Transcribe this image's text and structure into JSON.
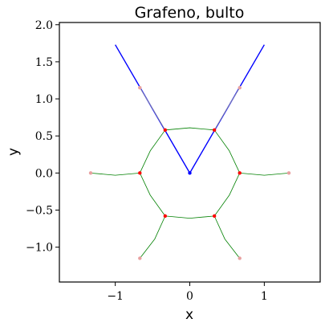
{
  "chart_data": {
    "type": "line",
    "title": "Grafeno, bulto",
    "xlabel": "x",
    "ylabel": "y",
    "xlim": [
      -1.75,
      1.75
    ],
    "ylim": [
      -1.47,
      2.03
    ],
    "xticks": [
      {
        "value": -1,
        "label": "−1"
      },
      {
        "value": 0,
        "label": "0"
      },
      {
        "value": 1,
        "label": "1"
      }
    ],
    "yticks": [
      {
        "value": -1.0,
        "label": "−1.0"
      },
      {
        "value": -0.5,
        "label": "−0.5"
      },
      {
        "value": 0.0,
        "label": "0.0"
      },
      {
        "value": 0.5,
        "label": "0.5"
      },
      {
        "value": 1.0,
        "label": "1.0"
      },
      {
        "value": 1.5,
        "label": "1.5"
      },
      {
        "value": 2.0,
        "label": "2.0"
      }
    ],
    "grid": false,
    "colors": {
      "blue": "#0000ff",
      "green": "#008000",
      "red": "#ff0000",
      "gray": "#999999",
      "pink": "#e8a0a0"
    },
    "series": [
      {
        "color": "blue",
        "width": 1.4,
        "points": [
          [
            -1.0,
            1.73
          ],
          [
            0.0,
            0.0
          ],
          [
            1.0,
            1.73
          ]
        ]
      },
      {
        "color": "gray",
        "width": 0.8,
        "points": [
          [
            -0.67,
            1.15
          ],
          [
            -0.5,
            0.87
          ],
          [
            -0.33,
            0.58
          ]
        ]
      },
      {
        "color": "gray",
        "width": 0.8,
        "points": [
          [
            0.67,
            1.15
          ],
          [
            0.5,
            0.87
          ],
          [
            0.33,
            0.58
          ]
        ]
      },
      {
        "color": "green",
        "width": 0.8,
        "points": [
          [
            -0.33,
            0.58
          ],
          [
            0.0,
            0.61
          ],
          [
            0.33,
            0.58
          ],
          [
            0.53,
            0.3
          ],
          [
            0.67,
            0.0
          ],
          [
            0.53,
            -0.3
          ],
          [
            0.33,
            -0.58
          ],
          [
            0.0,
            -0.61
          ],
          [
            -0.33,
            -0.58
          ],
          [
            -0.53,
            -0.3
          ],
          [
            -0.67,
            0.0
          ],
          [
            -0.53,
            0.3
          ],
          [
            -0.33,
            0.58
          ]
        ]
      },
      {
        "color": "green",
        "width": 0.8,
        "points": [
          [
            -0.67,
            0.0
          ],
          [
            -1.0,
            -0.03
          ],
          [
            -1.33,
            0.0
          ]
        ]
      },
      {
        "color": "green",
        "width": 0.8,
        "points": [
          [
            0.67,
            0.0
          ],
          [
            1.0,
            -0.03
          ],
          [
            1.33,
            0.0
          ]
        ]
      },
      {
        "color": "green",
        "width": 0.8,
        "points": [
          [
            -0.33,
            -0.58
          ],
          [
            -0.47,
            -0.89
          ],
          [
            -0.67,
            -1.15
          ]
        ]
      },
      {
        "color": "green",
        "width": 0.8,
        "points": [
          [
            0.33,
            -0.58
          ],
          [
            0.47,
            -0.89
          ],
          [
            0.67,
            -1.15
          ]
        ]
      }
    ],
    "points": [
      {
        "x": 0.0,
        "y": 0.0,
        "color": "blue"
      },
      {
        "x": -0.33,
        "y": 0.58,
        "color": "red"
      },
      {
        "x": 0.33,
        "y": 0.58,
        "color": "red"
      },
      {
        "x": -0.67,
        "y": 0.0,
        "color": "red"
      },
      {
        "x": 0.67,
        "y": 0.0,
        "color": "red"
      },
      {
        "x": -0.33,
        "y": -0.58,
        "color": "red"
      },
      {
        "x": 0.33,
        "y": -0.58,
        "color": "red"
      },
      {
        "x": -1.33,
        "y": 0.0,
        "color": "pink"
      },
      {
        "x": 1.33,
        "y": 0.0,
        "color": "pink"
      },
      {
        "x": -0.67,
        "y": -1.15,
        "color": "pink"
      },
      {
        "x": 0.67,
        "y": -1.15,
        "color": "pink"
      },
      {
        "x": -0.67,
        "y": 1.15,
        "color": "pink"
      },
      {
        "x": 0.67,
        "y": 1.15,
        "color": "pink"
      }
    ]
  }
}
